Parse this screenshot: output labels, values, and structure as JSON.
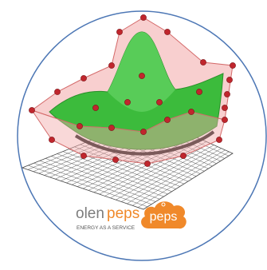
{
  "brand": {
    "name_start": "olen",
    "name_end": "peps",
    "tagline": "ENERGY AS A SERVICE",
    "badge": "peps"
  }
}
